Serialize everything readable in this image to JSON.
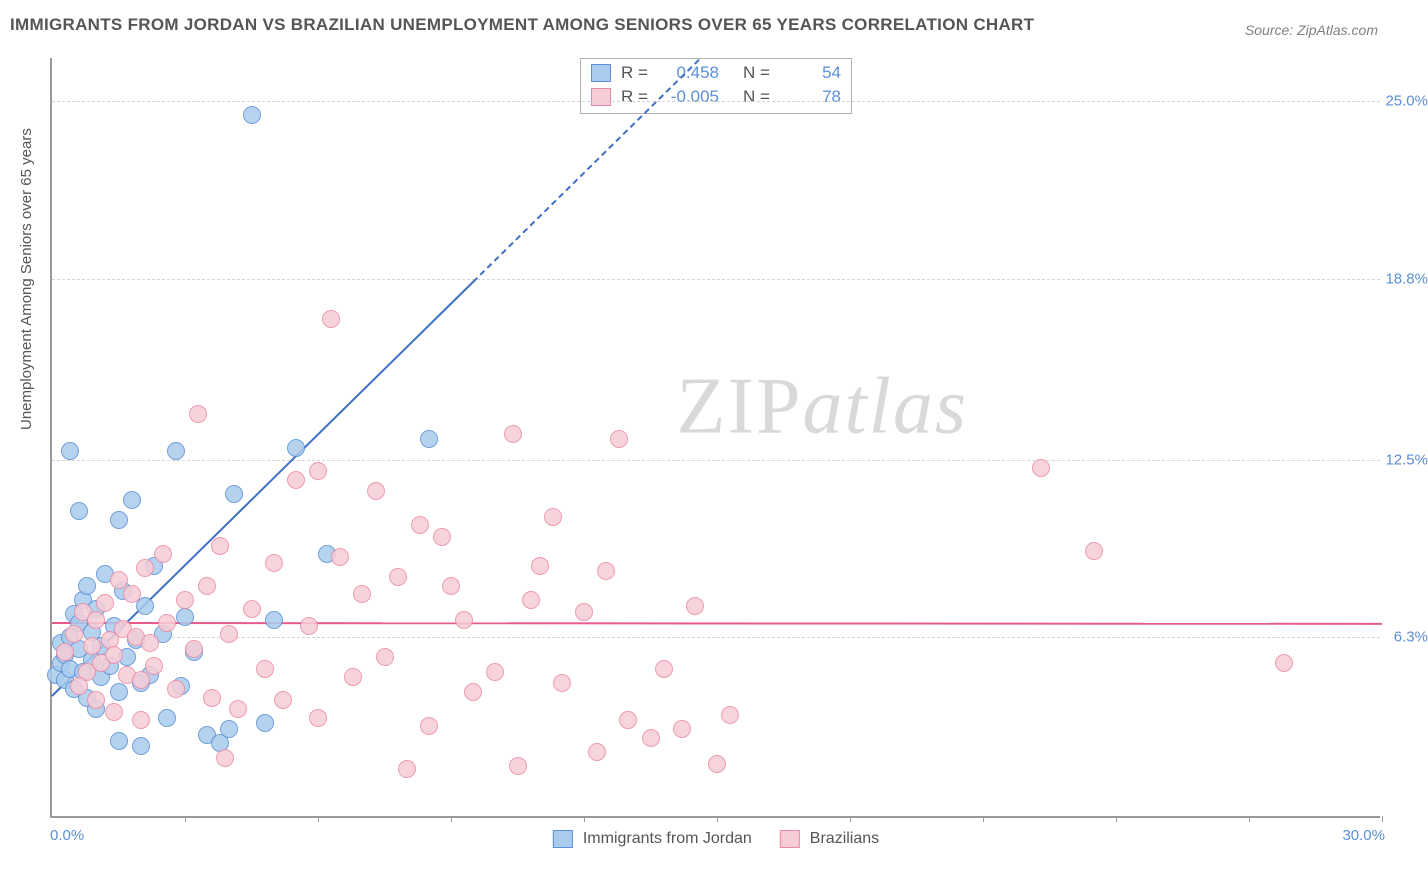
{
  "title": "IMMIGRANTS FROM JORDAN VS BRAZILIAN UNEMPLOYMENT AMONG SENIORS OVER 65 YEARS CORRELATION CHART",
  "source": "Source: ZipAtlas.com",
  "watermark_a": "ZIP",
  "watermark_b": "atlas",
  "chart": {
    "type": "scatter",
    "y_axis_title": "Unemployment Among Seniors over 65 years",
    "xlim": [
      0,
      30
    ],
    "ylim": [
      0,
      26.5
    ],
    "x_origin_label": "0.0%",
    "x_max_label": "30.0%",
    "x_ticks": [
      3,
      6,
      9,
      12,
      15,
      18,
      21,
      24,
      27,
      30
    ],
    "y_gridlines": [
      {
        "value": 6.3,
        "label": "6.3%"
      },
      {
        "value": 12.5,
        "label": "12.5%"
      },
      {
        "value": 18.8,
        "label": "18.8%"
      },
      {
        "value": 25.0,
        "label": "25.0%"
      }
    ],
    "background_color": "#ffffff",
    "grid_color": "#d5d5d5",
    "axis_color": "#999999",
    "tick_label_color": "#5b8fd6",
    "marker_radius": 9,
    "series": [
      {
        "name": "Immigrants from Jordan",
        "fill": "#a9cbed",
        "stroke": "#5b8fd6",
        "r_value": "0.458",
        "n_value": "54",
        "trend": {
          "y_at_x0": 4.3,
          "slope": 1.52,
          "color": "#3f6fc4",
          "dash_after_x": 9.5
        },
        "points": [
          [
            0.1,
            5.0
          ],
          [
            0.2,
            5.4
          ],
          [
            0.2,
            6.1
          ],
          [
            0.3,
            5.7
          ],
          [
            0.3,
            4.8
          ],
          [
            0.4,
            6.3
          ],
          [
            0.4,
            5.2
          ],
          [
            0.5,
            7.1
          ],
          [
            0.5,
            4.5
          ],
          [
            0.6,
            5.9
          ],
          [
            0.6,
            6.8
          ],
          [
            0.7,
            7.6
          ],
          [
            0.7,
            5.1
          ],
          [
            0.8,
            4.2
          ],
          [
            0.8,
            8.1
          ],
          [
            0.9,
            6.5
          ],
          [
            0.9,
            5.5
          ],
          [
            1.0,
            3.8
          ],
          [
            1.0,
            7.3
          ],
          [
            1.1,
            6.0
          ],
          [
            1.1,
            4.9
          ],
          [
            1.2,
            8.5
          ],
          [
            1.3,
            5.3
          ],
          [
            1.4,
            6.7
          ],
          [
            1.5,
            10.4
          ],
          [
            1.5,
            4.4
          ],
          [
            1.6,
            7.9
          ],
          [
            1.7,
            5.6
          ],
          [
            1.8,
            11.1
          ],
          [
            1.9,
            6.2
          ],
          [
            2.0,
            4.7
          ],
          [
            2.1,
            7.4
          ],
          [
            2.2,
            5.0
          ],
          [
            2.3,
            8.8
          ],
          [
            2.5,
            6.4
          ],
          [
            2.6,
            3.5
          ],
          [
            2.8,
            12.8
          ],
          [
            2.9,
            4.6
          ],
          [
            3.0,
            7.0
          ],
          [
            3.2,
            5.8
          ],
          [
            3.5,
            2.9
          ],
          [
            3.8,
            2.6
          ],
          [
            4.0,
            3.1
          ],
          [
            4.1,
            11.3
          ],
          [
            4.5,
            24.5
          ],
          [
            4.8,
            3.3
          ],
          [
            5.0,
            6.9
          ],
          [
            5.5,
            12.9
          ],
          [
            6.2,
            9.2
          ],
          [
            0.4,
            12.8
          ],
          [
            0.6,
            10.7
          ],
          [
            1.5,
            2.7
          ],
          [
            2.0,
            2.5
          ],
          [
            8.5,
            13.2
          ]
        ]
      },
      {
        "name": "Brazilians",
        "fill": "#f6cdd7",
        "stroke": "#ea8ba3",
        "r_value": "-0.005",
        "n_value": "78",
        "trend": {
          "y_at_x0": 6.85,
          "slope": -0.001,
          "color": "#e85a8c",
          "dash_after_x": 999
        },
        "points": [
          [
            0.3,
            5.8
          ],
          [
            0.5,
            6.4
          ],
          [
            0.7,
            7.2
          ],
          [
            0.8,
            5.1
          ],
          [
            0.9,
            6.0
          ],
          [
            1.0,
            6.9
          ],
          [
            1.1,
            5.4
          ],
          [
            1.2,
            7.5
          ],
          [
            1.3,
            6.2
          ],
          [
            1.4,
            5.7
          ],
          [
            1.5,
            8.3
          ],
          [
            1.6,
            6.6
          ],
          [
            1.7,
            5.0
          ],
          [
            1.8,
            7.8
          ],
          [
            1.9,
            6.3
          ],
          [
            2.0,
            4.8
          ],
          [
            2.1,
            8.7
          ],
          [
            2.2,
            6.1
          ],
          [
            2.3,
            5.3
          ],
          [
            2.5,
            9.2
          ],
          [
            2.6,
            6.8
          ],
          [
            2.8,
            4.5
          ],
          [
            3.0,
            7.6
          ],
          [
            3.2,
            5.9
          ],
          [
            3.5,
            8.1
          ],
          [
            3.6,
            4.2
          ],
          [
            3.8,
            9.5
          ],
          [
            4.0,
            6.4
          ],
          [
            4.2,
            3.8
          ],
          [
            4.5,
            7.3
          ],
          [
            4.8,
            5.2
          ],
          [
            5.0,
            8.9
          ],
          [
            5.2,
            4.1
          ],
          [
            5.5,
            11.8
          ],
          [
            5.8,
            6.7
          ],
          [
            6.0,
            3.5
          ],
          [
            6.3,
            17.4
          ],
          [
            6.5,
            9.1
          ],
          [
            6.8,
            4.9
          ],
          [
            7.0,
            7.8
          ],
          [
            7.3,
            11.4
          ],
          [
            7.5,
            5.6
          ],
          [
            7.8,
            8.4
          ],
          [
            8.0,
            1.7
          ],
          [
            8.3,
            10.2
          ],
          [
            8.5,
            3.2
          ],
          [
            8.8,
            9.8
          ],
          [
            9.0,
            8.1
          ],
          [
            9.3,
            6.9
          ],
          [
            9.5,
            4.4
          ],
          [
            10.0,
            5.1
          ],
          [
            10.4,
            13.4
          ],
          [
            10.5,
            1.8
          ],
          [
            10.8,
            7.6
          ],
          [
            11.0,
            8.8
          ],
          [
            11.3,
            10.5
          ],
          [
            11.5,
            4.7
          ],
          [
            12.0,
            7.2
          ],
          [
            12.3,
            2.3
          ],
          [
            12.5,
            8.6
          ],
          [
            12.8,
            13.2
          ],
          [
            13.0,
            3.4
          ],
          [
            13.5,
            2.8
          ],
          [
            13.8,
            5.2
          ],
          [
            14.2,
            3.1
          ],
          [
            14.5,
            7.4
          ],
          [
            15.0,
            1.9
          ],
          [
            15.3,
            3.6
          ],
          [
            22.3,
            12.2
          ],
          [
            23.5,
            9.3
          ],
          [
            27.8,
            5.4
          ],
          [
            3.3,
            14.1
          ],
          [
            1.0,
            4.1
          ],
          [
            1.4,
            3.7
          ],
          [
            2.0,
            3.4
          ],
          [
            0.6,
            4.6
          ],
          [
            6.0,
            12.1
          ],
          [
            3.9,
            2.1
          ]
        ]
      }
    ],
    "legend_top": {
      "r_label": "R =",
      "n_label": "N ="
    },
    "legend_bottom": [
      {
        "label": "Immigrants from Jordan",
        "fill": "#a9cbed",
        "stroke": "#5b8fd6"
      },
      {
        "label": "Brazilians",
        "fill": "#f6cdd7",
        "stroke": "#ea8ba3"
      }
    ]
  }
}
